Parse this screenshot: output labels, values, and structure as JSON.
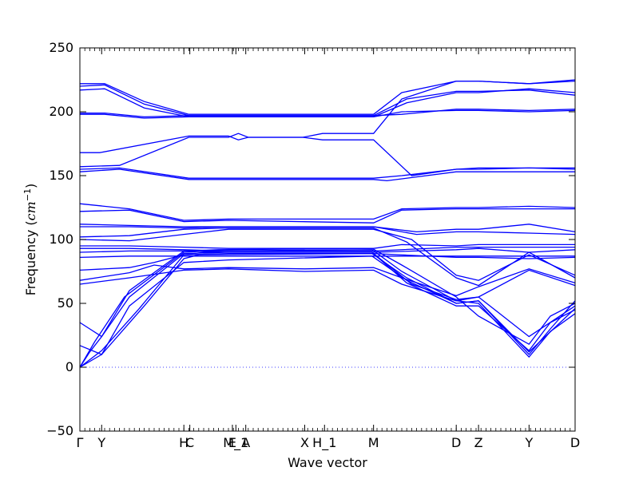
{
  "chart_data": {
    "type": "line",
    "xlabel": "Wave vector",
    "ylabel": "Frequency ",
    "ylabel_unit": "cm",
    "ylabel_unit_exp": "−1",
    "ylim": [
      -50,
      250
    ],
    "yticks": [
      -50,
      0,
      50,
      100,
      150,
      200,
      250
    ],
    "xlim": [
      0,
      1
    ],
    "grid": false,
    "zero_line": {
      "y": 0,
      "style": "dotted"
    },
    "kpoints": [
      {
        "label": "Γ",
        "x": 0.0
      },
      {
        "label": "Y",
        "x": 0.044
      },
      {
        "label": "H",
        "x": 0.21
      },
      {
        "label": "C",
        "x": 0.222
      },
      {
        "label": "E",
        "x": 0.308
      },
      {
        "label": "M_1",
        "x": 0.315
      },
      {
        "label": "A",
        "x": 0.335
      },
      {
        "label": "X",
        "x": 0.454
      },
      {
        "label": "H_1",
        "x": 0.494
      },
      {
        "label": "M",
        "x": 0.593
      },
      {
        "label": "D",
        "x": 0.76
      },
      {
        "label": "Z",
        "x": 0.805
      },
      {
        "label": "Y",
        "x": 0.907
      },
      {
        "label": "D",
        "x": 1.0
      }
    ],
    "series": [
      {
        "points": [
          [
            0,
            0
          ],
          [
            0.044,
            10
          ],
          [
            0.13,
            48
          ],
          [
            0.21,
            85
          ],
          [
            0.24,
            88
          ],
          [
            0.59,
            89
          ],
          [
            0.66,
            70
          ],
          [
            0.76,
            50
          ],
          [
            0.805,
            52
          ],
          [
            0.907,
            10
          ],
          [
            0.95,
            30
          ],
          [
            1,
            52
          ]
        ]
      },
      {
        "points": [
          [
            0,
            0
          ],
          [
            0.044,
            13
          ],
          [
            0.12,
            46
          ],
          [
            0.21,
            88
          ],
          [
            0.25,
            90
          ],
          [
            0.59,
            90
          ],
          [
            0.66,
            66
          ],
          [
            0.76,
            48
          ],
          [
            0.805,
            48
          ],
          [
            0.907,
            13
          ],
          [
            0.95,
            35
          ],
          [
            1,
            45
          ]
        ]
      },
      {
        "points": [
          [
            0,
            0
          ],
          [
            0.03,
            20
          ],
          [
            0.09,
            55
          ],
          [
            0.21,
            90
          ],
          [
            0.26,
            91
          ],
          [
            0.59,
            92
          ],
          [
            0.65,
            75
          ],
          [
            0.76,
            52
          ],
          [
            0.805,
            50
          ],
          [
            0.907,
            8
          ],
          [
            0.95,
            28
          ],
          [
            1,
            42
          ]
        ]
      },
      {
        "points": [
          [
            0,
            0
          ],
          [
            0.02,
            12
          ],
          [
            0.044,
            24
          ],
          [
            0.1,
            60
          ],
          [
            0.21,
            91
          ],
          [
            0.28,
            92
          ],
          [
            0.59,
            93
          ],
          [
            0.65,
            80
          ],
          [
            0.76,
            55
          ],
          [
            0.805,
            40
          ],
          [
            0.907,
            18
          ],
          [
            0.95,
            40
          ],
          [
            1,
            50
          ]
        ]
      },
      {
        "points": [
          [
            0,
            35
          ],
          [
            0.02,
            30
          ],
          [
            0.044,
            24
          ],
          [
            0.1,
            55
          ],
          [
            0.21,
            89
          ],
          [
            0.3,
            90
          ],
          [
            0.59,
            90
          ],
          [
            0.67,
            65
          ],
          [
            0.76,
            53
          ],
          [
            0.805,
            55
          ],
          [
            0.907,
            24
          ],
          [
            1,
            48
          ]
        ]
      },
      {
        "points": [
          [
            0,
            17
          ],
          [
            0.044,
            10
          ],
          [
            0.1,
            48
          ],
          [
            0.21,
            82
          ],
          [
            0.3,
            84
          ],
          [
            0.59,
            87
          ],
          [
            0.66,
            68
          ],
          [
            0.76,
            50
          ],
          [
            0.805,
            52
          ],
          [
            0.907,
            12
          ],
          [
            1,
            46
          ]
        ]
      },
      {
        "points": [
          [
            0,
            65
          ],
          [
            0.1,
            70
          ],
          [
            0.21,
            76
          ],
          [
            0.3,
            77
          ],
          [
            0.454,
            75
          ],
          [
            0.593,
            76
          ],
          [
            0.65,
            65
          ],
          [
            0.76,
            52
          ],
          [
            0.805,
            55
          ],
          [
            0.907,
            76
          ],
          [
            1,
            64
          ]
        ]
      },
      {
        "points": [
          [
            0,
            68
          ],
          [
            0.1,
            74
          ],
          [
            0.15,
            80
          ],
          [
            0.21,
            77
          ],
          [
            0.3,
            78
          ],
          [
            0.454,
            77
          ],
          [
            0.593,
            78
          ],
          [
            0.65,
            70
          ],
          [
            0.76,
            56
          ],
          [
            0.805,
            63
          ],
          [
            0.907,
            77
          ],
          [
            1,
            66
          ]
        ]
      },
      {
        "points": [
          [
            0,
            76
          ],
          [
            0.1,
            78
          ],
          [
            0.15,
            82
          ],
          [
            0.21,
            88
          ],
          [
            0.3,
            89
          ],
          [
            0.593,
            89
          ],
          [
            0.76,
            86
          ],
          [
            0.805,
            86
          ],
          [
            0.907,
            85
          ],
          [
            1,
            86
          ]
        ]
      },
      {
        "points": [
          [
            0,
            86
          ],
          [
            0.1,
            87
          ],
          [
            0.21,
            87
          ],
          [
            0.3,
            87
          ],
          [
            0.593,
            87
          ],
          [
            0.76,
            87
          ],
          [
            0.805,
            87
          ],
          [
            0.907,
            87
          ],
          [
            1,
            87
          ]
        ]
      },
      {
        "points": [
          [
            0,
            90
          ],
          [
            0.1,
            91
          ],
          [
            0.21,
            91
          ],
          [
            0.3,
            90
          ],
          [
            0.593,
            90
          ],
          [
            0.76,
            92
          ],
          [
            0.805,
            93
          ],
          [
            0.907,
            90
          ],
          [
            1,
            92
          ]
        ]
      },
      {
        "points": [
          [
            0,
            93
          ],
          [
            0.1,
            93
          ],
          [
            0.21,
            92
          ],
          [
            0.3,
            91
          ],
          [
            0.593,
            91
          ],
          [
            0.76,
            94
          ],
          [
            0.805,
            94
          ],
          [
            0.907,
            94
          ],
          [
            1,
            94
          ]
        ]
      },
      {
        "points": [
          [
            0,
            95
          ],
          [
            0.1,
            95
          ],
          [
            0.21,
            94
          ],
          [
            0.3,
            93
          ],
          [
            0.593,
            93
          ],
          [
            0.65,
            96
          ],
          [
            0.76,
            95
          ],
          [
            0.805,
            96
          ],
          [
            0.907,
            96
          ],
          [
            1,
            96
          ]
        ]
      },
      {
        "points": [
          [
            0,
            100
          ],
          [
            0.1,
            99
          ],
          [
            0.21,
            104
          ],
          [
            0.3,
            108
          ],
          [
            0.593,
            108
          ],
          [
            0.67,
            100
          ],
          [
            0.76,
            72
          ],
          [
            0.805,
            68
          ],
          [
            0.907,
            88
          ],
          [
            1,
            72
          ]
        ]
      },
      {
        "points": [
          [
            0,
            102
          ],
          [
            0.1,
            103
          ],
          [
            0.21,
            108
          ],
          [
            0.3,
            109
          ],
          [
            0.593,
            109
          ],
          [
            0.66,
            98
          ],
          [
            0.76,
            70
          ],
          [
            0.805,
            64
          ],
          [
            0.907,
            90
          ],
          [
            1,
            70
          ]
        ]
      },
      {
        "points": [
          [
            0,
            110
          ],
          [
            0.1,
            110
          ],
          [
            0.21,
            109
          ],
          [
            0.3,
            110
          ],
          [
            0.593,
            110
          ],
          [
            0.68,
            104
          ],
          [
            0.76,
            106
          ],
          [
            0.805,
            106
          ],
          [
            0.907,
            105
          ],
          [
            1,
            104
          ]
        ]
      },
      {
        "points": [
          [
            0,
            112
          ],
          [
            0.1,
            111
          ],
          [
            0.21,
            110
          ],
          [
            0.3,
            110
          ],
          [
            0.593,
            110
          ],
          [
            0.68,
            106
          ],
          [
            0.76,
            108
          ],
          [
            0.805,
            108
          ],
          [
            0.907,
            112
          ],
          [
            1,
            106
          ]
        ]
      },
      {
        "points": [
          [
            0,
            122
          ],
          [
            0.1,
            123
          ],
          [
            0.21,
            114
          ],
          [
            0.3,
            115
          ],
          [
            0.593,
            113
          ],
          [
            0.65,
            123
          ],
          [
            0.76,
            124
          ],
          [
            0.805,
            124
          ],
          [
            0.907,
            124
          ],
          [
            1,
            124
          ]
        ]
      },
      {
        "points": [
          [
            0,
            128
          ],
          [
            0.1,
            124
          ],
          [
            0.21,
            115
          ],
          [
            0.3,
            116
          ],
          [
            0.593,
            116
          ],
          [
            0.65,
            124
          ],
          [
            0.76,
            125
          ],
          [
            0.805,
            125
          ],
          [
            0.907,
            126
          ],
          [
            1,
            125
          ]
        ]
      },
      {
        "points": [
          [
            0,
            153
          ],
          [
            0.08,
            155
          ],
          [
            0.22,
            147
          ],
          [
            0.3,
            147
          ],
          [
            0.593,
            147
          ],
          [
            0.62,
            146
          ],
          [
            0.76,
            153
          ],
          [
            0.805,
            153
          ],
          [
            0.907,
            153
          ],
          [
            1,
            153
          ]
        ]
      },
      {
        "points": [
          [
            0,
            155
          ],
          [
            0.08,
            156
          ],
          [
            0.22,
            148
          ],
          [
            0.3,
            148
          ],
          [
            0.593,
            148
          ],
          [
            0.65,
            150
          ],
          [
            0.76,
            155
          ],
          [
            0.805,
            155
          ],
          [
            0.907,
            156
          ],
          [
            1,
            155
          ]
        ]
      },
      {
        "points": [
          [
            0,
            157
          ],
          [
            0.08,
            158
          ],
          [
            0.22,
            180
          ],
          [
            0.3,
            180
          ],
          [
            0.32,
            183
          ],
          [
            0.34,
            180
          ],
          [
            0.45,
            180
          ],
          [
            0.49,
            183
          ],
          [
            0.593,
            183
          ],
          [
            0.65,
            210
          ],
          [
            0.76,
            224
          ],
          [
            0.805,
            224
          ],
          [
            0.907,
            222
          ],
          [
            1,
            224
          ]
        ]
      },
      {
        "points": [
          [
            0,
            168
          ],
          [
            0.04,
            168
          ],
          [
            0.22,
            181
          ],
          [
            0.3,
            181
          ],
          [
            0.32,
            178
          ],
          [
            0.34,
            180
          ],
          [
            0.45,
            180
          ],
          [
            0.49,
            178
          ],
          [
            0.593,
            178
          ],
          [
            0.67,
            150
          ],
          [
            0.76,
            155
          ],
          [
            0.805,
            156
          ],
          [
            0.907,
            156
          ],
          [
            1,
            156
          ]
        ]
      },
      {
        "points": [
          [
            0,
            198
          ],
          [
            0.05,
            198
          ],
          [
            0.13,
            195
          ],
          [
            0.22,
            196
          ],
          [
            0.593,
            196
          ],
          [
            0.65,
            200
          ],
          [
            0.76,
            201
          ],
          [
            0.805,
            201
          ],
          [
            0.907,
            200
          ],
          [
            1,
            201
          ]
        ]
      },
      {
        "points": [
          [
            0,
            199
          ],
          [
            0.05,
            199
          ],
          [
            0.13,
            196
          ],
          [
            0.22,
            197
          ],
          [
            0.593,
            197
          ],
          [
            0.65,
            198
          ],
          [
            0.76,
            202
          ],
          [
            0.805,
            202
          ],
          [
            0.907,
            201
          ],
          [
            1,
            202
          ]
        ]
      },
      {
        "points": [
          [
            0,
            217
          ],
          [
            0.05,
            218
          ],
          [
            0.13,
            203
          ],
          [
            0.22,
            196
          ],
          [
            0.593,
            196
          ],
          [
            0.66,
            207
          ],
          [
            0.76,
            215
          ],
          [
            0.805,
            215
          ],
          [
            0.907,
            218
          ],
          [
            1,
            215
          ]
        ]
      },
      {
        "points": [
          [
            0,
            220
          ],
          [
            0.05,
            221
          ],
          [
            0.13,
            206
          ],
          [
            0.22,
            197
          ],
          [
            0.593,
            197
          ],
          [
            0.66,
            210
          ],
          [
            0.76,
            216
          ],
          [
            0.805,
            216
          ],
          [
            0.907,
            217
          ],
          [
            1,
            213
          ]
        ]
      },
      {
        "points": [
          [
            0,
            222
          ],
          [
            0.05,
            222
          ],
          [
            0.13,
            208
          ],
          [
            0.22,
            198
          ],
          [
            0.593,
            198
          ],
          [
            0.65,
            215
          ],
          [
            0.76,
            224
          ],
          [
            0.805,
            224
          ],
          [
            0.907,
            222
          ],
          [
            1,
            225
          ]
        ]
      }
    ]
  }
}
